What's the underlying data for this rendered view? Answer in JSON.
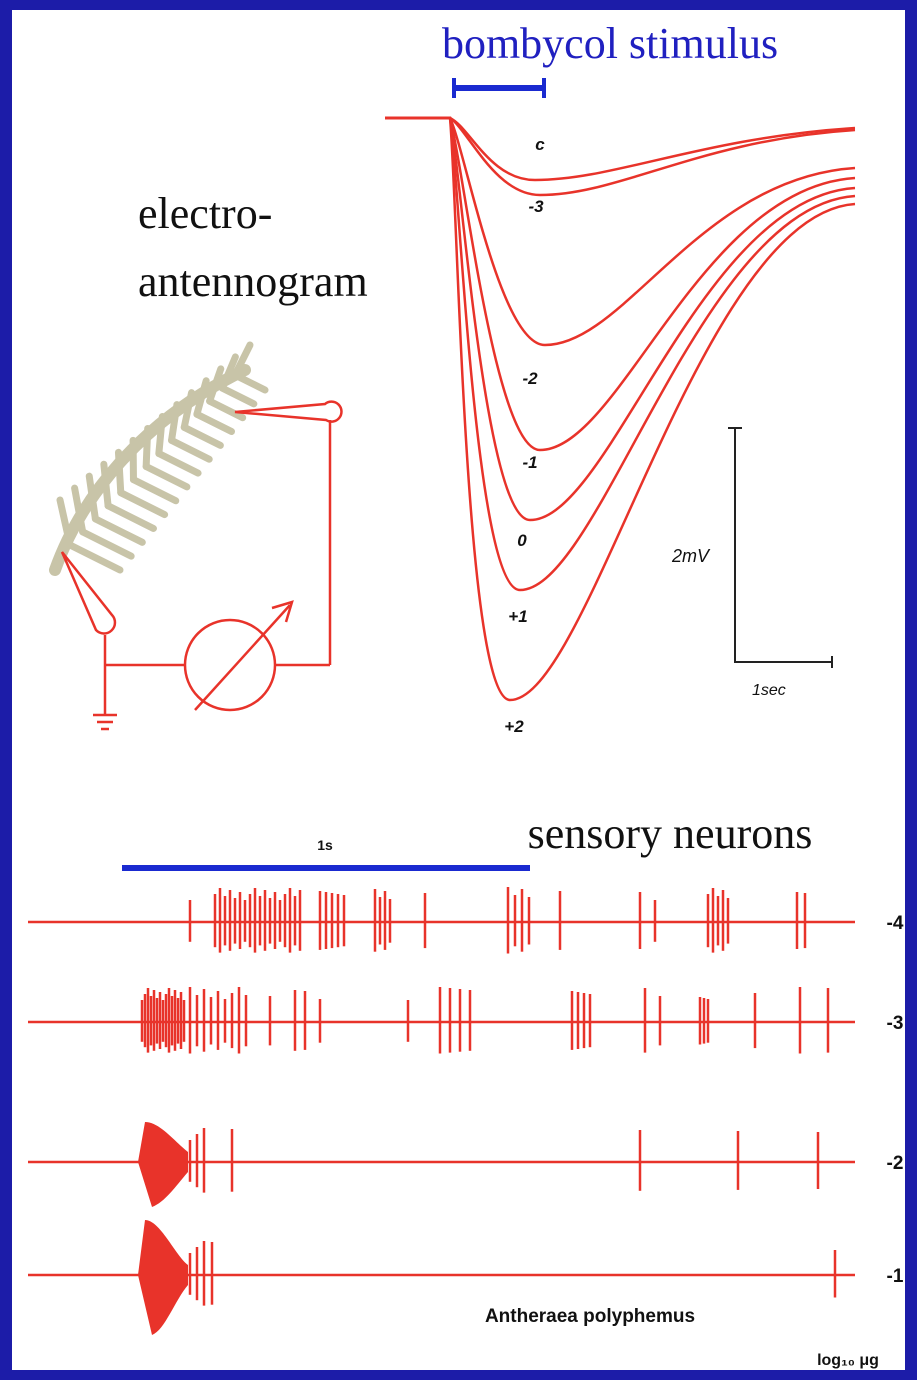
{
  "header": {
    "title": "bombycol stimulus"
  },
  "eag": {
    "title_lines": [
      "electro-",
      "antennogram"
    ],
    "curve_labels": [
      "c",
      "-3",
      "-2",
      "-1",
      "0",
      "+1",
      "+2"
    ],
    "scale_voltage": "2mV",
    "scale_time": "1sec"
  },
  "neurons": {
    "title": "sensory neurons",
    "time_bar": "1s",
    "trace_labels": [
      "-4",
      "-3",
      "-2",
      "-1"
    ],
    "species": "Antheraea polyphemus",
    "unit": "log₁₀ μg"
  }
}
